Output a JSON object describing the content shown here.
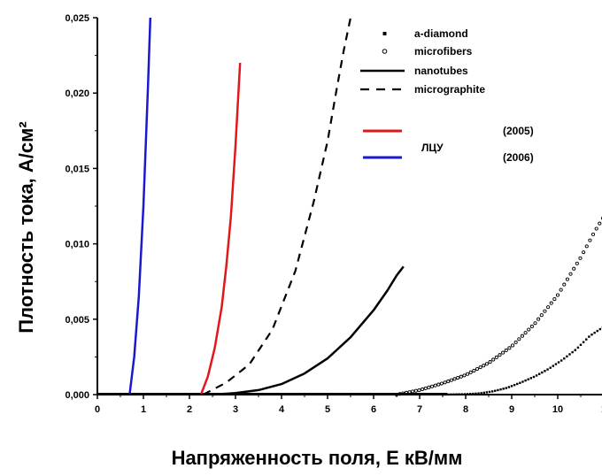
{
  "chart_data": {
    "type": "line",
    "xlabel": "Напряженность поля, Е кВ/мм",
    "ylabel": "Плотность тока, А/см²",
    "xlim": [
      0,
      11
    ],
    "ylim": [
      0,
      0.025
    ],
    "grid": false,
    "legend_position": "top-right",
    "xticks": [
      "0",
      "1",
      "2",
      "3",
      "4",
      "5",
      "6",
      "7",
      "8",
      "9",
      "10",
      "1"
    ],
    "yticks": [
      "0,000",
      "0,005",
      "0,010",
      "0,015",
      "0,020",
      "0,025"
    ],
    "legend_group_label": "ЛЦУ",
    "series": [
      {
        "name": "a-diamond",
        "style": "dense-dots",
        "color": "#000000",
        "x": [
          7.5,
          8.0,
          8.3,
          8.6,
          8.9,
          9.2,
          9.5,
          9.8,
          10.1,
          10.4,
          10.7,
          11.0
        ],
        "y": [
          0,
          3e-05,
          8e-05,
          0.00022,
          0.00045,
          0.0008,
          0.0012,
          0.0017,
          0.0023,
          0.003,
          0.0039,
          0.0045
        ]
      },
      {
        "name": "microfibers",
        "style": "sparse-dots",
        "color": "#000000",
        "x": [
          6.5,
          7.0,
          7.5,
          8.0,
          8.5,
          9.0,
          9.5,
          10.0,
          10.5,
          10.8,
          11.0
        ],
        "y": [
          0,
          0.0003,
          0.00075,
          0.0013,
          0.0021,
          0.0032,
          0.0047,
          0.0066,
          0.0091,
          0.0108,
          0.0118
        ]
      },
      {
        "name": "nanotubes",
        "style": "solid",
        "color": "#000000",
        "x": [
          2.5,
          3.0,
          3.5,
          4.0,
          4.5,
          5.0,
          5.5,
          6.0,
          6.3,
          6.5,
          6.65
        ],
        "y": [
          0,
          0.0001,
          0.0003,
          0.0007,
          0.0014,
          0.0024,
          0.0038,
          0.0056,
          0.0069,
          0.0079,
          0.0085
        ]
      },
      {
        "name": "micrographite",
        "style": "dashed",
        "color": "#000000",
        "x": [
          2.3,
          2.8,
          3.3,
          3.8,
          4.3,
          4.7,
          5.0,
          5.2,
          5.35,
          5.5
        ],
        "y": [
          0,
          0.0008,
          0.002,
          0.0043,
          0.0082,
          0.0128,
          0.0168,
          0.0203,
          0.0228,
          0.025
        ]
      },
      {
        "name": "(2005)",
        "style": "solid",
        "color": "#e0181c",
        "x": [
          2.25,
          2.4,
          2.55,
          2.7,
          2.8,
          2.9,
          3.0,
          3.1
        ],
        "y": [
          0,
          0.0012,
          0.0031,
          0.0058,
          0.0085,
          0.0118,
          0.0165,
          0.022
        ]
      },
      {
        "name": "(2006)",
        "style": "solid",
        "color": "#1a1acc",
        "x": [
          0.7,
          0.8,
          0.9,
          1.0,
          1.05,
          1.1,
          1.15
        ],
        "y": [
          0,
          0.0025,
          0.0065,
          0.0125,
          0.0165,
          0.0205,
          0.025
        ]
      }
    ]
  }
}
